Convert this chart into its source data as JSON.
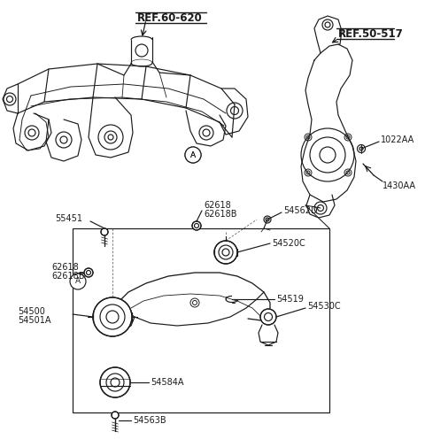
{
  "bg_color": "#ffffff",
  "line_color": "#1a1a1a",
  "figsize": [
    4.8,
    5.05
  ],
  "dpi": 100,
  "labels": {
    "ref60620": "REF.60-620",
    "ref50517": "REF.50-517",
    "p55451": "55451",
    "p62618_top": "62618",
    "p62618b_top": "62618B",
    "p54562d": "54562D",
    "p1022aa": "1022AA",
    "p1430aa": "1430AA",
    "p62618_left": "62618",
    "p62618b_left": "62618B",
    "pA_top": "A",
    "pA_left": "A",
    "p54520c": "54520C",
    "p54519": "54519",
    "p54530c": "54530C",
    "p54500": "54500",
    "p54501a": "54501A",
    "p54584a": "54584A",
    "p54563b": "54563B"
  }
}
